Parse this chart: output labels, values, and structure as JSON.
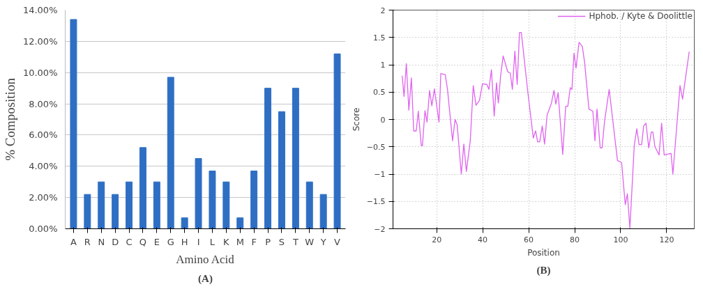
{
  "chart_data": [
    {
      "type": "bar",
      "title": "(A)",
      "xlabel": "Amino Acid",
      "ylabel": "% Composition",
      "categories": [
        "A",
        "R",
        "N",
        "D",
        "C",
        "Q",
        "E",
        "G",
        "H",
        "I",
        "L",
        "K",
        "M",
        "F",
        "P",
        "S",
        "T",
        "W",
        "Y",
        "V"
      ],
      "series": [
        {
          "color": "#2e6fc4",
          "values": [
            13.4,
            2.2,
            3.0,
            2.2,
            3.0,
            5.2,
            3.0,
            9.7,
            0.7,
            4.5,
            3.7,
            3.0,
            0.7,
            3.7,
            9.0,
            7.5,
            9.0,
            3.0,
            2.2,
            11.2
          ]
        }
      ],
      "ylim": [
        0,
        14
      ],
      "yticks": [
        {
          "value": 0,
          "label": "0.00%"
        },
        {
          "value": 2,
          "label": "2.00%"
        },
        {
          "value": 4,
          "label": "4.00%"
        },
        {
          "value": 6,
          "label": "6.00%"
        },
        {
          "value": 8,
          "label": "8.00%"
        },
        {
          "value": 10,
          "label": "10.00%"
        },
        {
          "value": 12,
          "label": "12.00%"
        },
        {
          "value": 14,
          "label": "14.00%"
        }
      ],
      "grid": "y"
    },
    {
      "type": "line",
      "title": "(B)",
      "xlabel": "Position",
      "ylabel": "Score",
      "legend": "top right",
      "grid": true,
      "line_style": "solid",
      "marker": "none",
      "x": [
        5,
        5.8,
        6.8,
        7.9,
        9,
        10,
        11.1,
        12,
        13.3,
        13.8,
        14.9,
        15.8,
        16.9,
        17.9,
        19,
        21,
        21.8,
        23.7,
        24.7,
        26.9,
        28,
        28.9,
        30.7,
        31.8,
        32.9,
        34.6,
        35.9,
        37.1,
        38.6,
        39.9,
        41.8,
        42.7,
        43.8,
        45,
        46,
        46.8,
        47.8,
        48.9,
        50.9,
        52,
        52.9,
        54,
        55,
        56,
        56.8,
        59.6,
        62,
        63,
        63.9,
        64.8,
        65.9,
        66.9,
        68,
        69.9,
        71,
        71.8,
        72.8,
        74.8,
        76.1,
        77,
        78.1,
        78.8,
        79.7,
        80.6,
        81.9,
        83.3,
        84.3,
        86.2,
        87.9,
        88.8,
        89.7,
        91.1,
        91.9,
        93,
        95,
        98.6,
        100.4,
        102,
        102.9,
        104,
        105.9,
        107,
        108,
        109.1,
        110,
        111,
        112.2,
        113.3,
        114,
        114.9,
        116.7,
        117.8,
        118.9,
        121.9,
        122.7,
        125.8,
        126.9,
        129.8
      ],
      "series": [
        {
          "name": "Hphob. / Kyte & Doolittle",
          "color": "#e062f0",
          "values": [
            0.8,
            0.42,
            1.02,
            0.17,
            0.76,
            -0.21,
            -0.21,
            0.15,
            -0.48,
            -0.48,
            0.16,
            -0.05,
            0.53,
            0.25,
            0.56,
            -0.05,
            0.84,
            0.82,
            0.55,
            -0.39,
            0.0,
            -0.1,
            -1.0,
            -0.45,
            -0.95,
            -0.39,
            0.62,
            0.26,
            0.35,
            0.65,
            0.64,
            0.55,
            0.91,
            0.06,
            0.67,
            0.3,
            0.8,
            1.16,
            0.87,
            0.85,
            0.55,
            1.25,
            0.64,
            1.59,
            1.59,
            0.51,
            -0.34,
            -0.21,
            -0.41,
            -0.41,
            -0.12,
            -0.45,
            0.08,
            0.3,
            0.53,
            0.28,
            0.49,
            -0.64,
            0.24,
            0.24,
            0.58,
            0.55,
            1.21,
            0.94,
            1.41,
            1.34,
            1.05,
            0.19,
            0.15,
            -0.39,
            0.19,
            -0.52,
            -0.52,
            -0.03,
            0.55,
            -0.75,
            -0.79,
            -1.56,
            -1.36,
            -1.99,
            -0.48,
            -0.17,
            -0.46,
            -0.46,
            -0.12,
            -0.07,
            -0.52,
            -0.23,
            -0.23,
            -0.5,
            -0.65,
            -0.07,
            -0.65,
            -0.62,
            -1.0,
            0.62,
            0.37,
            1.24
          ]
        }
      ],
      "xlim": [
        1,
        132
      ],
      "xticks": [
        20,
        40,
        60,
        80,
        100,
        120
      ],
      "ylim": [
        -2,
        2
      ],
      "yticks": [
        -2,
        -1.5,
        -1,
        -0.5,
        0,
        0.5,
        1,
        1.5,
        2
      ]
    }
  ]
}
